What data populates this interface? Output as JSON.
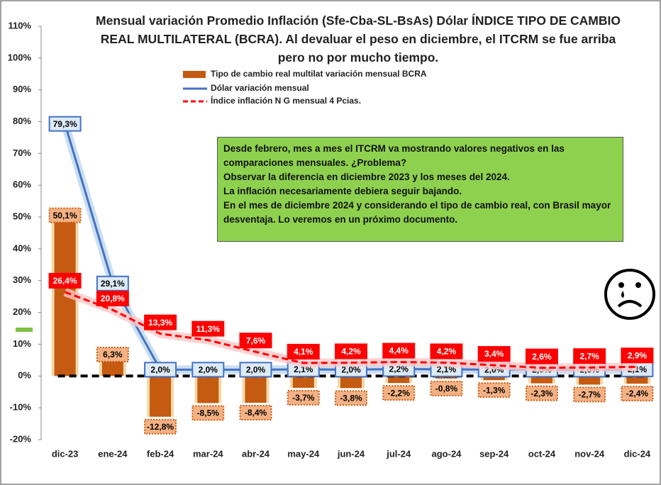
{
  "chart_data": {
    "type": "bar",
    "title": "Mensual variación Promedio Inflación (Sfe-Cba-SL-BsAs) Dólar ÍNDICE TIPO DE CAMBIO REAL MULTILATERAL (BCRA). Al devaluar el peso en diciembre, el ITCRM se fue arriba pero no por mucho tiempo.",
    "categories": [
      "dic-23",
      "ene-24",
      "feb-24",
      "mar-24",
      "abr-24",
      "may-24",
      "jun-24",
      "jul-24",
      "ago-24",
      "sep-24",
      "oct-24",
      "nov-24",
      "dic-24"
    ],
    "series": [
      {
        "name": "Tipo de cambio real multilat variación mensual BCRA",
        "type": "bar",
        "color": "#c55a11",
        "values": [
          50.1,
          6.3,
          -12.8,
          -8.5,
          -8.4,
          -3.7,
          -3.8,
          -2.2,
          -0.8,
          -1.3,
          -2.3,
          -2.7,
          -2.4
        ],
        "value_labels": [
          "50,1%",
          "6,3%",
          "-12,8%",
          "-8,5%",
          "-8,4%",
          "-3,7%",
          "-3,8%",
          "-2,2%",
          "-0,8%",
          "-1,3%",
          "-2,3%",
          "-2,7%",
          "-2,4%"
        ]
      },
      {
        "name": "Dólar variación mensual",
        "type": "line",
        "color": "#4472c4",
        "values": [
          79.3,
          29.1,
          2.0,
          2.0,
          2.0,
          2.1,
          2.0,
          2.2,
          2.1,
          2.0,
          2.0,
          2.0,
          2.1
        ],
        "value_labels": [
          "79,3%",
          "29,1%",
          "2,0%",
          "2,0%",
          "2,0%",
          "2,1%",
          "2,0%",
          "2,2%",
          "2,1%",
          "2,0%",
          "2,0%",
          "2,0%",
          "2,1%"
        ]
      },
      {
        "name": "Índice inflación N G mensual 4 Pcias.",
        "type": "line",
        "dashed": true,
        "color": "#ff0000",
        "values": [
          26.4,
          20.8,
          13.3,
          11.3,
          7.6,
          4.1,
          4.2,
          4.4,
          4.2,
          3.4,
          2.6,
          2.7,
          2.9
        ],
        "value_labels": [
          "26,4%",
          "20,8%",
          "13,3%",
          "11,3%",
          "7,6%",
          "4,1%",
          "4,2%",
          "4,4%",
          "4,2%",
          "3,4%",
          "2,6%",
          "2,7%",
          "2,9%"
        ]
      }
    ],
    "ylim": [
      -20,
      110
    ],
    "yticks": [
      {
        "value": -20,
        "label": "-20%"
      },
      {
        "value": -10,
        "label": "-10%"
      },
      {
        "value": 0,
        "label": "0%"
      },
      {
        "value": 10,
        "label": "10%"
      },
      {
        "value": 20,
        "label": "20%"
      },
      {
        "value": 30,
        "label": "30%"
      },
      {
        "value": 40,
        "label": "40%"
      },
      {
        "value": 50,
        "label": "50%"
      },
      {
        "value": 60,
        "label": "60%"
      },
      {
        "value": 70,
        "label": "70%"
      },
      {
        "value": 80,
        "label": "80%"
      },
      {
        "value": 90,
        "label": "90%"
      },
      {
        "value": 100,
        "label": "100%"
      },
      {
        "value": 110,
        "label": "110%"
      }
    ],
    "annotation": [
      "Desde febrero, mes a mes el ITCRM va mostrando valores negativos en las comparaciones mensuales. ¿Problema?",
      "Observar la diferencia en diciembre 2023 y los meses del 2024.",
      "La inflación necesariamente debiera seguir bajando.",
      "En el mes de diciembre 2024 y considerando  el tipo de cambio real, con Brasil mayor desventaja. Lo veremos en un próximo documento."
    ]
  }
}
